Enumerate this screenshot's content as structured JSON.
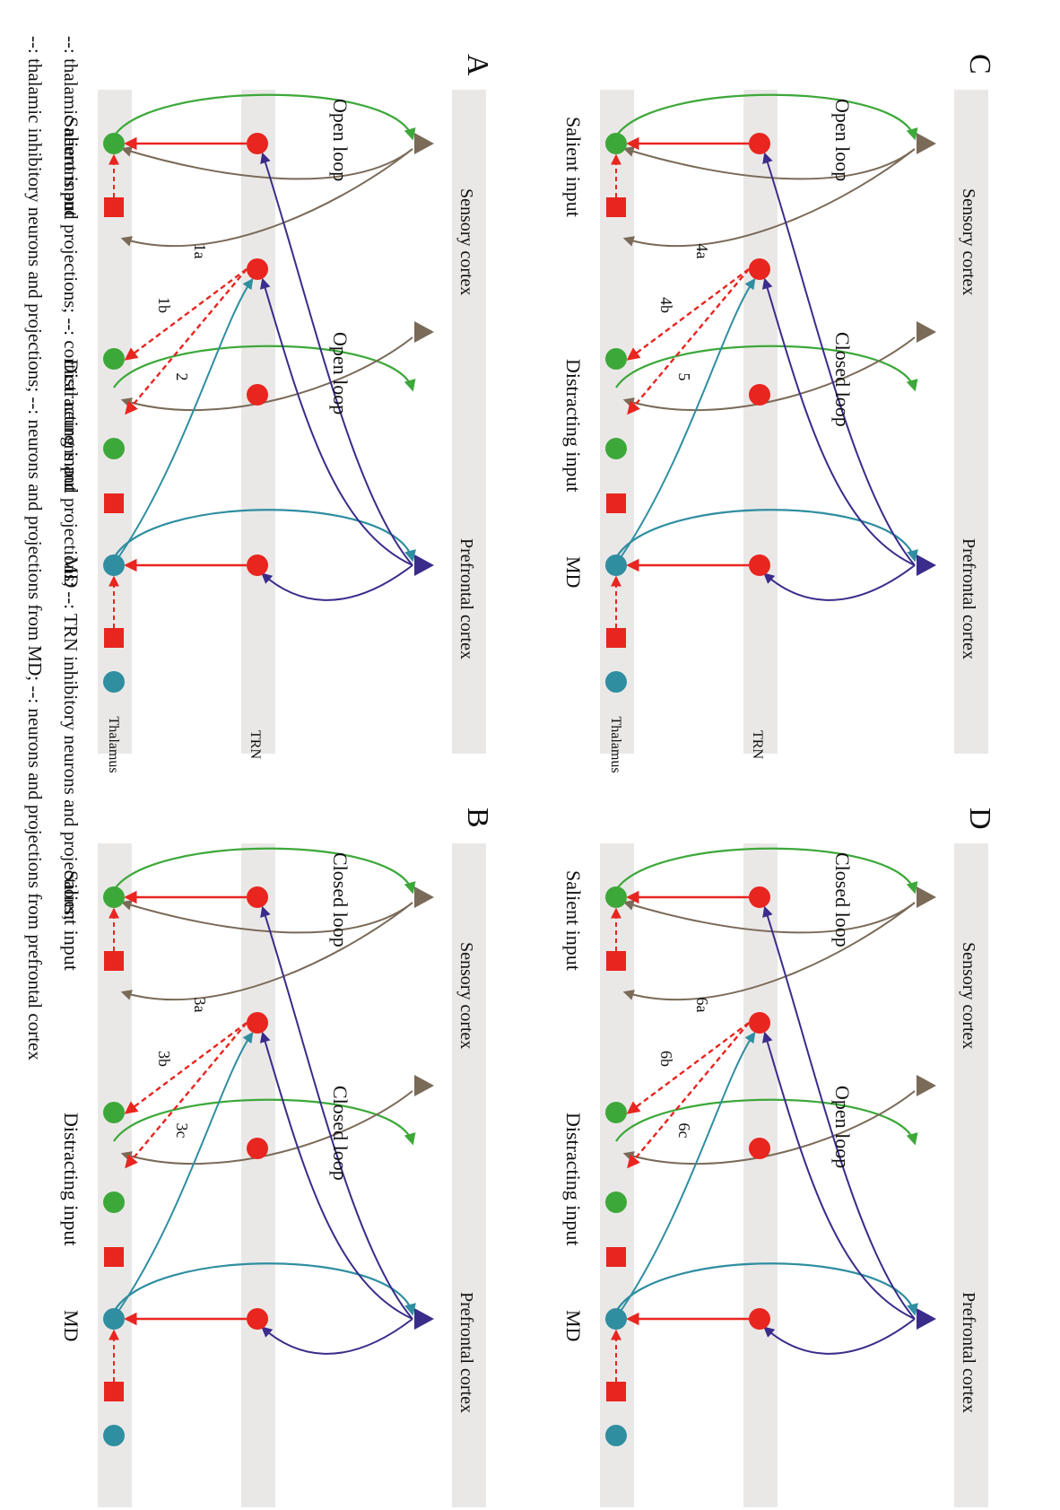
{
  "panels": [
    {
      "letter": "A",
      "top_label_left": "Sensory cortex",
      "top_label_right": "Prefrontal cortex",
      "loop_labels": [
        "Open loop",
        "Open loop"
      ],
      "bottom_labels": [
        "Salient input",
        "Distracting input",
        "MD"
      ],
      "numbers": [
        "1a",
        "1b",
        "2"
      ]
    },
    {
      "letter": "B",
      "top_label_left": "Sensory cortex",
      "top_label_right": "Prefrontal cortex",
      "loop_labels": [
        "Closed loop",
        "Closed loop"
      ],
      "bottom_labels": [
        "Salient input",
        "Distracting input",
        "MD"
      ],
      "numbers": [
        "3a",
        "3b",
        "3c"
      ]
    },
    {
      "letter": "C",
      "top_label_left": "Sensory cortex",
      "top_label_right": "Prefrontal cortex",
      "loop_labels": [
        "Open loop",
        "Closed loop"
      ],
      "bottom_labels": [
        "Salient input",
        "Distracting input",
        "MD"
      ],
      "numbers": [
        "4a",
        "4b",
        "5"
      ]
    },
    {
      "letter": "D",
      "top_label_left": "Sensory cortex",
      "top_label_right": "Prefrontal cortex",
      "loop_labels": [
        "Closed loop",
        "Open loop"
      ],
      "bottom_labels": [
        "Salient input",
        "Distracting input",
        "MD"
      ],
      "numbers": [
        "6a",
        "6b",
        "6c"
      ]
    }
  ],
  "band_labels": {
    "trn": "TRN",
    "thalamus": "Thalamus"
  },
  "legend": {
    "line1": "--: thalamic neurons and projections;     --: cortical neurons and projections;     --: TRN inhibitory neurons and projections;",
    "line2": "--: thalamic inhibitory neurons and projections;     --: neurons and projections from MD;     --: neurons and projections from prefrontal cortex"
  },
  "colors": {
    "thalamic_green": "#3da83a",
    "cortical_brown": "#7a6a58",
    "trn_red": "#e8251f",
    "md_teal": "#2f8ea0",
    "prefrontal_purple": "#3a2c8a",
    "band_gray": "#d9d6d3"
  }
}
